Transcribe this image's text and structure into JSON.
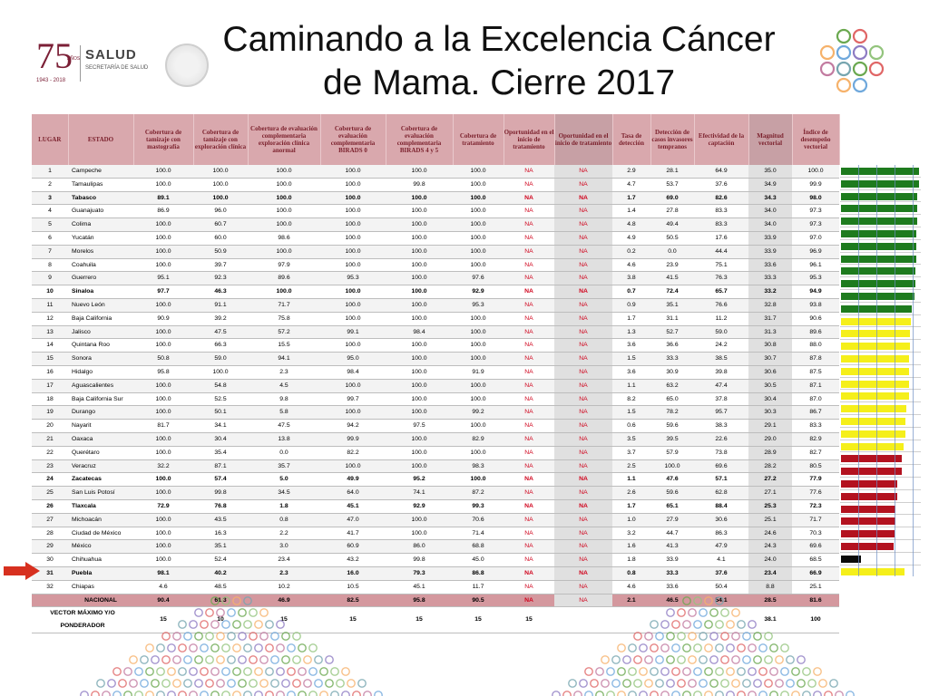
{
  "logos": {
    "anniversary_number": "75",
    "anniversary_word": "AÑOS",
    "anniversary_years": "1943 - 2018",
    "brand": "SALUD",
    "brand_sub": "SECRETARÍA DE SALUD",
    "seal_icon": "coat-of-arms-seal"
  },
  "title": {
    "line1": "Caminando a la Excelencia Cáncer",
    "line2": "de Mama. Cierre 2017"
  },
  "table": {
    "headers": {
      "lugar": "LUGAR",
      "estado": "ESTADO",
      "c1": "Cobertura de tamizaje con mastografía",
      "c2": "Cobertura de tamizaje con exploración clínica",
      "c3": "Cobertura de evaluación complementaria exploración clínica anormal",
      "c4": "Cobertura de evaluación complementaria BIRADS 0",
      "c5": "Cobertura de evaluación complementaria BIRADS 4 y 5",
      "c6": "Cobertura de tratamiento",
      "c7": "Oportunidad en el inicio de tratamiento",
      "c8": "Oportunidad en el inicio de tratamiento",
      "c9": "Tasa de detección",
      "c10": "Detección de casos invasores tempranos",
      "c11": "Efectividad de la captación",
      "c12": "Magnitud vectorial",
      "c13": "Índice de desempeño vectorial"
    },
    "rows": [
      [
        "1",
        "Campeche",
        "100.0",
        "100.0",
        "100.0",
        "100.0",
        "100.0",
        "100.0",
        "NA",
        "NA",
        "2.9",
        "28.1",
        "64.9",
        "35.0",
        "100.0"
      ],
      [
        "2",
        "Tamaulipas",
        "100.0",
        "100.0",
        "100.0",
        "100.0",
        "99.8",
        "100.0",
        "NA",
        "NA",
        "4.7",
        "53.7",
        "37.6",
        "34.9",
        "99.9"
      ],
      [
        "3",
        "Tabasco",
        "89.1",
        "100.0",
        "100.0",
        "100.0",
        "100.0",
        "100.0",
        "NA",
        "NA",
        "1.7",
        "69.0",
        "82.6",
        "34.3",
        "98.0"
      ],
      [
        "4",
        "Guanajuato",
        "86.9",
        "96.0",
        "100.0",
        "100.0",
        "100.0",
        "100.0",
        "NA",
        "NA",
        "1.4",
        "27.8",
        "83.3",
        "34.0",
        "97.3"
      ],
      [
        "5",
        "Colima",
        "100.0",
        "60.7",
        "100.0",
        "100.0",
        "100.0",
        "100.0",
        "NA",
        "NA",
        "4.8",
        "49.4",
        "83.3",
        "34.0",
        "97.3"
      ],
      [
        "6",
        "Yucatán",
        "100.0",
        "60.0",
        "98.6",
        "100.0",
        "100.0",
        "100.0",
        "NA",
        "NA",
        "4.9",
        "50.5",
        "17.6",
        "33.9",
        "97.0"
      ],
      [
        "7",
        "Morelos",
        "100.0",
        "50.9",
        "100.0",
        "100.0",
        "100.0",
        "100.0",
        "NA",
        "NA",
        "0.2",
        "0.0",
        "44.4",
        "33.9",
        "96.9"
      ],
      [
        "8",
        "Coahuila",
        "100.0",
        "39.7",
        "97.9",
        "100.0",
        "100.0",
        "100.0",
        "NA",
        "NA",
        "4.6",
        "23.9",
        "75.1",
        "33.6",
        "96.1"
      ],
      [
        "9",
        "Guerrero",
        "95.1",
        "92.3",
        "89.6",
        "95.3",
        "100.0",
        "97.6",
        "NA",
        "NA",
        "3.8",
        "41.5",
        "76.3",
        "33.3",
        "95.3"
      ],
      [
        "10",
        "Sinaloa",
        "97.7",
        "46.3",
        "100.0",
        "100.0",
        "100.0",
        "92.9",
        "NA",
        "NA",
        "0.7",
        "72.4",
        "65.7",
        "33.2",
        "94.9"
      ],
      [
        "11",
        "Nuevo León",
        "100.0",
        "91.1",
        "71.7",
        "100.0",
        "100.0",
        "95.3",
        "NA",
        "NA",
        "0.9",
        "35.1",
        "76.6",
        "32.8",
        "93.8"
      ],
      [
        "12",
        "Baja California",
        "90.9",
        "39.2",
        "75.8",
        "100.0",
        "100.0",
        "100.0",
        "NA",
        "NA",
        "1.7",
        "31.1",
        "11.2",
        "31.7",
        "90.6"
      ],
      [
        "13",
        "Jalisco",
        "100.0",
        "47.5",
        "57.2",
        "99.1",
        "98.4",
        "100.0",
        "NA",
        "NA",
        "1.3",
        "52.7",
        "59.0",
        "31.3",
        "89.6"
      ],
      [
        "14",
        "Quintana Roo",
        "100.0",
        "66.3",
        "15.5",
        "100.0",
        "100.0",
        "100.0",
        "NA",
        "NA",
        "3.6",
        "36.6",
        "24.2",
        "30.8",
        "88.0"
      ],
      [
        "15",
        "Sonora",
        "50.8",
        "59.0",
        "94.1",
        "95.0",
        "100.0",
        "100.0",
        "NA",
        "NA",
        "1.5",
        "33.3",
        "38.5",
        "30.7",
        "87.8"
      ],
      [
        "16",
        "Hidalgo",
        "95.8",
        "100.0",
        "2.3",
        "98.4",
        "100.0",
        "91.9",
        "NA",
        "NA",
        "3.6",
        "30.9",
        "39.8",
        "30.6",
        "87.5"
      ],
      [
        "17",
        "Aguascalientes",
        "100.0",
        "54.8",
        "4.5",
        "100.0",
        "100.0",
        "100.0",
        "NA",
        "NA",
        "1.1",
        "63.2",
        "47.4",
        "30.5",
        "87.1"
      ],
      [
        "18",
        "Baja California Sur",
        "100.0",
        "52.5",
        "9.8",
        "99.7",
        "100.0",
        "100.0",
        "NA",
        "NA",
        "8.2",
        "65.0",
        "37.8",
        "30.4",
        "87.0"
      ],
      [
        "19",
        "Durango",
        "100.0",
        "50.1",
        "5.8",
        "100.0",
        "100.0",
        "99.2",
        "NA",
        "NA",
        "1.5",
        "78.2",
        "95.7",
        "30.3",
        "86.7"
      ],
      [
        "20",
        "Nayarit",
        "81.7",
        "34.1",
        "47.5",
        "94.2",
        "97.5",
        "100.0",
        "NA",
        "NA",
        "0.6",
        "59.6",
        "38.3",
        "29.1",
        "83.3"
      ],
      [
        "21",
        "Oaxaca",
        "100.0",
        "30.4",
        "13.8",
        "99.9",
        "100.0",
        "82.9",
        "NA",
        "NA",
        "3.5",
        "39.5",
        "22.6",
        "29.0",
        "82.9"
      ],
      [
        "22",
        "Querétaro",
        "100.0",
        "35.4",
        "0.0",
        "82.2",
        "100.0",
        "100.0",
        "NA",
        "NA",
        "3.7",
        "57.9",
        "73.8",
        "28.9",
        "82.7"
      ],
      [
        "23",
        "Veracruz",
        "32.2",
        "87.1",
        "35.7",
        "100.0",
        "100.0",
        "98.3",
        "NA",
        "NA",
        "2.5",
        "100.0",
        "69.6",
        "28.2",
        "80.5"
      ],
      [
        "24",
        "Zacatecas",
        "100.0",
        "57.4",
        "5.0",
        "49.9",
        "95.2",
        "100.0",
        "NA",
        "NA",
        "1.1",
        "47.6",
        "57.1",
        "27.2",
        "77.9"
      ],
      [
        "25",
        "San Luis Potosí",
        "100.0",
        "99.8",
        "34.5",
        "64.0",
        "74.1",
        "87.2",
        "NA",
        "NA",
        "2.6",
        "59.6",
        "62.8",
        "27.1",
        "77.6"
      ],
      [
        "26",
        "Tlaxcala",
        "72.9",
        "76.8",
        "1.8",
        "45.1",
        "92.9",
        "99.3",
        "NA",
        "NA",
        "1.7",
        "65.1",
        "88.4",
        "25.3",
        "72.3"
      ],
      [
        "27",
        "Michoacán",
        "100.0",
        "43.5",
        "0.8",
        "47.0",
        "100.0",
        "70.6",
        "NA",
        "NA",
        "1.0",
        "27.9",
        "30.6",
        "25.1",
        "71.7"
      ],
      [
        "28",
        "Ciudad de México",
        "100.0",
        "16.3",
        "2.2",
        "41.7",
        "100.0",
        "71.4",
        "NA",
        "NA",
        "3.2",
        "44.7",
        "86.3",
        "24.6",
        "70.3"
      ],
      [
        "29",
        "México",
        "100.0",
        "35.1",
        "3.0",
        "60.9",
        "86.0",
        "68.8",
        "NA",
        "NA",
        "1.6",
        "41.3",
        "47.9",
        "24.3",
        "69.6"
      ],
      [
        "30",
        "Chihuahua",
        "100.0",
        "52.4",
        "23.4",
        "43.2",
        "99.8",
        "45.0",
        "NA",
        "NA",
        "1.8",
        "33.9",
        "4.1",
        "24.0",
        "68.5"
      ],
      [
        "31",
        "Puebla",
        "98.1",
        "40.2",
        "2.3",
        "16.0",
        "79.3",
        "86.8",
        "NA",
        "NA",
        "0.8",
        "33.3",
        "37.6",
        "23.4",
        "66.9"
      ],
      [
        "32",
        "Chiapas",
        "4.6",
        "48.5",
        "10.2",
        "10.5",
        "45.1",
        "11.7",
        "NA",
        "NA",
        "4.6",
        "33.6",
        "50.4",
        "8.8",
        "25.1"
      ]
    ],
    "bold_rows": [
      3,
      10,
      24,
      26,
      31
    ],
    "nacional": [
      "",
      "NACIONAL",
      "90.4",
      "61.3",
      "46.9",
      "82.5",
      "95.8",
      "90.5",
      "NA",
      "NA",
      "2.1",
      "46.5",
      "54.1",
      "28.5",
      "81.6"
    ],
    "vector": [
      "VECTOR MÁXIMO Y/O PONDERADOR",
      "15",
      "10",
      "15",
      "15",
      "15",
      "15",
      "15",
      "",
      "",
      "",
      "",
      "38.1",
      "100"
    ]
  },
  "performance_bars": {
    "scale_max": 100,
    "thresholds": {
      "green": 90,
      "yellow": 80,
      "red": 60
    },
    "colors": {
      "green": "#1e7b1e",
      "yellow": "#f5ef1a",
      "red": "#b3121f",
      "black": "#0a0a0a"
    }
  },
  "pointer": {
    "icon": "red-arrow-icon",
    "color": "#d7301f"
  },
  "decor": {
    "circle_colors": [
      "#6aa84f",
      "#e06666",
      "#f6b26b",
      "#6fa8dc",
      "#8e7cc3",
      "#93c47d",
      "#c27ba0",
      "#76a5af"
    ]
  }
}
